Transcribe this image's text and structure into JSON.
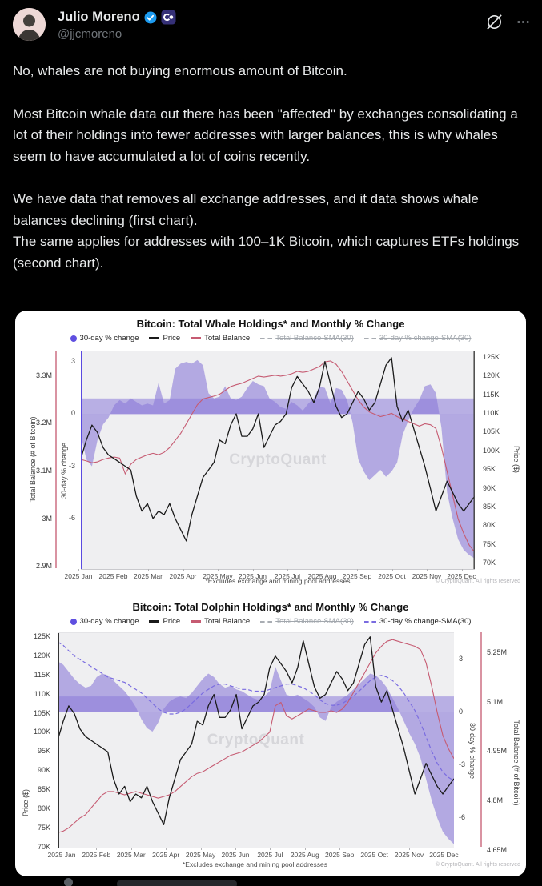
{
  "tweet": {
    "author": {
      "name": "Julio Moreno",
      "handle": "@jjcmoreno",
      "verified": true
    },
    "paragraphs": [
      "No, whales are not buying enormous amount of Bitcoin.",
      "Most Bitcoin whale data out there has been \"affected\" by exchanges consolidating a lot of their holdings into fewer addresses with larger balances, this is why whales seem to have accumulated a lot of coins recently.",
      "We have data that removes all exchange addresses, and it data shows whale balances declining (first chart).\nThe same applies for addresses with 100–1K Bitcoin, which captures ETFs holdings (second chart)."
    ],
    "icons": {
      "grok": "grok-slash-icon",
      "more": "⋯"
    },
    "colors": {
      "text": "#e7e9ea",
      "muted": "#71767b",
      "verified_blue": "#1d9bf0",
      "badge_bg": "#353077"
    }
  },
  "chart_data": [
    {
      "type": "line+area",
      "title": "Bitcoin: Total Whale Holdings* and Monthly % Change",
      "watermark": "CryptoQuant",
      "footnote": "*Excludes exchange and mining pool addresses",
      "copyright": "© CryptoQuant. All rights reserved",
      "legend": [
        {
          "label": "30-day % change",
          "marker": "dot",
          "color": "#5f4fe0",
          "active": true
        },
        {
          "label": "Price",
          "marker": "line",
          "color": "#1a1a1a",
          "active": true
        },
        {
          "label": "Total Balance",
          "marker": "line",
          "color": "#c65b72",
          "active": true
        },
        {
          "label": "Total Balance-SMA(30)",
          "marker": "dash",
          "color": "#a9adb3",
          "active": false
        },
        {
          "label": "30-day % change-SMA(30)",
          "marker": "dash",
          "color": "#a9adb3",
          "active": false
        }
      ],
      "months": [
        "2025 Jan",
        "2025 Feb",
        "2025 Mar",
        "2025 Apr",
        "2025 May",
        "2025 Jun",
        "2025 Jul",
        "2025 Aug",
        "2025 Sep",
        "2025 Oct",
        "2025 Nov",
        "2025 Dec"
      ],
      "zero_band": 0.9,
      "colors": {
        "area": "#8a7ad8",
        "price": "#1a1a1a",
        "balance": "#c65b72",
        "sma": "#7a6ce0",
        "plot_bg": "#efeff1"
      },
      "axes": {
        "balance": {
          "title": "Total Balance (# of Bitcoin)",
          "tick_labels": [
            "3.3M",
            "3.2M",
            "3.1M",
            "3M",
            "2.9M"
          ],
          "tick_values": [
            3.3,
            3.2,
            3.1,
            3.0,
            2.9
          ],
          "domain": [
            3.352,
            2.895
          ]
        },
        "pct": {
          "title": "30-day % change",
          "tick_labels": [
            "3",
            "0",
            "-3",
            "-6"
          ],
          "tick_values": [
            3,
            0,
            -3,
            -6
          ],
          "domain": [
            3.6,
            -8.9
          ]
        },
        "price": {
          "title": "Price ($)",
          "tick_labels": [
            "125K",
            "120K",
            "115K",
            "110K",
            "105K",
            "100K",
            "95K",
            "90K",
            "85K",
            "80K",
            "75K",
            "70K"
          ],
          "tick_values": [
            125,
            120,
            115,
            110,
            105,
            100,
            95,
            90,
            85,
            80,
            75,
            70
          ],
          "domain": [
            126.7,
            68.5
          ]
        }
      },
      "series": {
        "pct_change": {
          "name": "30-day % change",
          "axis": "pct",
          "values": [
            -1.2,
            -2.6,
            -3.0,
            -1.5,
            -0.6,
            -0.2,
            0.5,
            0.8,
            0.6,
            0.9,
            0.7,
            0.5,
            0.6,
            0.5,
            1.8,
            0.6,
            0.8,
            2.6,
            2.9,
            3.0,
            2.9,
            3.1,
            2.8,
            1.2,
            0.9,
            1.0,
            1.6,
            0.9,
            0.8,
            1.0,
            1.5,
            1.9,
            1.7,
            1.6,
            0.9,
            0.7,
            0.4,
            0.3,
            0.7,
            0.5,
            0.2,
            0.6,
            0.9,
            1.6,
            1.5,
            0.6,
            1.5,
            1.4,
            0.8,
            -0.5,
            -2.6,
            -3.3,
            -3.8,
            -3.5,
            -3.2,
            -3.6,
            -3.3,
            -2.8,
            -1.2,
            -0.4,
            0.3,
            0.8,
            1.6,
            1.7,
            1.2,
            -0.8,
            -4.5,
            -6.0,
            -7.2,
            -7.8,
            -8.1,
            -8.3
          ]
        },
        "price": {
          "name": "Price",
          "axis": "price",
          "values": [
            98,
            103,
            107,
            105,
            101,
            99,
            98,
            97,
            96,
            95,
            88,
            84,
            86,
            82,
            84,
            83,
            86,
            82,
            79,
            76,
            83,
            88,
            93,
            95,
            97,
            103,
            102,
            107,
            110,
            104,
            104,
            106,
            110,
            101,
            104,
            107,
            108,
            110,
            117,
            120,
            118,
            116,
            113,
            117,
            124,
            118,
            112,
            109,
            110,
            113,
            116,
            114,
            111,
            113,
            118,
            123,
            125,
            112,
            108,
            111,
            106,
            101,
            96,
            90,
            84,
            88,
            92,
            89,
            86,
            84,
            86,
            88
          ]
        },
        "balance": {
          "name": "Total Balance",
          "axis": "balance",
          "values": [
            3.125,
            3.122,
            3.118,
            3.12,
            3.125,
            3.128,
            3.13,
            3.128,
            3.095,
            3.115,
            3.125,
            3.13,
            3.135,
            3.138,
            3.135,
            3.14,
            3.15,
            3.165,
            3.18,
            3.2,
            3.22,
            3.24,
            3.252,
            3.255,
            3.258,
            3.262,
            3.27,
            3.278,
            3.282,
            3.285,
            3.29,
            3.295,
            3.3,
            3.298,
            3.3,
            3.302,
            3.3,
            3.302,
            3.305,
            3.31,
            3.308,
            3.31,
            3.315,
            3.32,
            3.33,
            3.332,
            3.325,
            3.31,
            3.29,
            3.27,
            3.25,
            3.235,
            3.225,
            3.22,
            3.215,
            3.218,
            3.222,
            3.215,
            3.21,
            3.205,
            3.2,
            3.195,
            3.2,
            3.198,
            3.19,
            3.15,
            3.1,
            3.05,
            3.0,
            2.97,
            2.945,
            2.93
          ]
        },
        "sma": null
      }
    },
    {
      "type": "line+area",
      "title": "Bitcoin: Total Dolphin Holdings* and Monthly % Change",
      "watermark": "CryptoQuant",
      "footnote": "*Excludes exchange and mining pool addresses",
      "copyright": "© CryptoQuant. All rights reserved",
      "legend": [
        {
          "label": "30-day % change",
          "marker": "dot",
          "color": "#5f4fe0",
          "active": true
        },
        {
          "label": "Price",
          "marker": "line",
          "color": "#1a1a1a",
          "active": true
        },
        {
          "label": "Total Balance",
          "marker": "line",
          "color": "#c65b72",
          "active": true
        },
        {
          "label": "Total Balance-SMA(30)",
          "marker": "dash",
          "color": "#a9adb3",
          "active": false
        },
        {
          "label": "30-day % change-SMA(30)",
          "marker": "dash",
          "color": "#7a6ce0",
          "active": true
        }
      ],
      "months": [
        "2025 Jan",
        "2025 Feb",
        "2025 Mar",
        "2025 Apr",
        "2025 May",
        "2025 Jun",
        "2025 Jul",
        "2025 Aug",
        "2025 Sep",
        "2025 Oct",
        "2025 Nov",
        "2025 Dec"
      ],
      "zero_band": 0.9,
      "colors": {
        "area": "#8a7ad8",
        "price": "#1a1a1a",
        "balance": "#c65b72",
        "sma": "#7a6ce0",
        "plot_bg": "#efeff1"
      },
      "axes": {
        "price": {
          "title": "Price ($)",
          "tick_labels": [
            "125K",
            "120K",
            "115K",
            "110K",
            "105K",
            "100K",
            "95K",
            "90K",
            "85K",
            "80K",
            "75K",
            "70K"
          ],
          "tick_values": [
            125,
            120,
            115,
            110,
            105,
            100,
            95,
            90,
            85,
            80,
            75,
            70
          ],
          "domain": [
            126.0,
            70.0
          ]
        },
        "pct": {
          "title": "30-day % change",
          "tick_labels": [
            "3",
            "0",
            "-3",
            "-6"
          ],
          "tick_values": [
            3,
            0,
            -3,
            -6
          ],
          "domain": [
            4.5,
            -7.7
          ]
        },
        "balance": {
          "title": "Total Balance (# of Bitcoin)",
          "tick_labels": [
            "5.25M",
            "5.1M",
            "4.95M",
            "4.8M",
            "4.65M"
          ],
          "tick_values": [
            5.25,
            5.1,
            4.95,
            4.8,
            4.65
          ],
          "domain": [
            5.31,
            4.66
          ]
        }
      },
      "series": {
        "pct_change": {
          "name": "30-day % change",
          "axis": "pct",
          "values": [
            2.9,
            2.7,
            2.3,
            1.9,
            1.6,
            1.4,
            1.5,
            2.0,
            2.2,
            2.1,
            1.8,
            1.5,
            1.2,
            0.8,
            0.3,
            -0.4,
            -0.9,
            -1.1,
            -0.6,
            0.2,
            0.6,
            0.8,
            0.9,
            0.8,
            1.1,
            1.5,
            1.9,
            2.2,
            2.0,
            1.6,
            1.4,
            1.5,
            1.3,
            1.2,
            1.0,
            0.8,
            0.7,
            0.9,
            1.2,
            2.6,
            1.8,
            1.0,
            0.9,
            1.0,
            0.8,
            0.6,
            0.3,
            -0.3,
            -0.5,
            0.3,
            0.6,
            0.8,
            1.0,
            1.3,
            1.6,
            1.9,
            2.2,
            2.1,
            1.8,
            1.4,
            0.8,
            0.2,
            -0.5,
            -1.2,
            -1.8,
            -2.6,
            -3.8,
            -5.0,
            -6.0,
            -6.8,
            -7.2,
            -7.5
          ]
        },
        "price": {
          "name": "Price",
          "axis": "price",
          "values": [
            98,
            103,
            107,
            105,
            101,
            99,
            98,
            97,
            96,
            95,
            88,
            84,
            86,
            82,
            84,
            83,
            86,
            82,
            79,
            76,
            83,
            88,
            93,
            95,
            97,
            103,
            102,
            107,
            110,
            104,
            104,
            106,
            110,
            101,
            104,
            107,
            108,
            110,
            117,
            120,
            118,
            116,
            113,
            117,
            124,
            118,
            112,
            109,
            110,
            113,
            116,
            114,
            111,
            113,
            118,
            123,
            125,
            112,
            108,
            111,
            106,
            101,
            96,
            90,
            84,
            88,
            92,
            89,
            86,
            84,
            86,
            88
          ]
        },
        "balance": {
          "name": "Total Balance",
          "axis": "balance",
          "values": [
            4.705,
            4.71,
            4.72,
            4.735,
            4.75,
            4.76,
            4.78,
            4.8,
            4.82,
            4.83,
            4.83,
            4.825,
            4.82,
            4.825,
            4.83,
            4.825,
            4.82,
            4.815,
            4.81,
            4.815,
            4.82,
            4.83,
            4.845,
            4.86,
            4.875,
            4.885,
            4.89,
            4.9,
            4.91,
            4.92,
            4.93,
            4.94,
            4.945,
            4.95,
            4.96,
            4.97,
            4.98,
            4.995,
            5.01,
            5.09,
            5.1,
            5.06,
            5.05,
            5.06,
            5.07,
            5.08,
            5.075,
            5.07,
            5.07,
            5.075,
            5.07,
            5.08,
            5.1,
            5.13,
            5.16,
            5.19,
            5.22,
            5.25,
            5.27,
            5.285,
            5.29,
            5.285,
            5.28,
            5.275,
            5.27,
            5.26,
            5.22,
            5.15,
            5.07,
            5.0,
            4.96,
            4.93
          ]
        },
        "sma": {
          "name": "30-day % change-SMA(30)",
          "axis": "pct",
          "values": [
            4.0,
            3.8,
            3.5,
            3.2,
            3.0,
            2.8,
            2.6,
            2.4,
            2.2,
            2.0,
            1.9,
            1.8,
            1.7,
            1.5,
            1.3,
            1.1,
            0.8,
            0.5,
            0.2,
            0.0,
            -0.1,
            -0.1,
            0.0,
            0.2,
            0.5,
            0.8,
            1.1,
            1.3,
            1.5,
            1.6,
            1.6,
            1.5,
            1.4,
            1.3,
            1.3,
            1.2,
            1.2,
            1.2,
            1.3,
            1.4,
            1.5,
            1.6,
            1.6,
            1.5,
            1.4,
            1.2,
            1.0,
            0.7,
            0.5,
            0.4,
            0.4,
            0.5,
            0.7,
            0.9,
            1.2,
            1.5,
            1.8,
            2.0,
            2.1,
            2.0,
            1.8,
            1.5,
            1.1,
            0.6,
            0.1,
            -0.6,
            -1.4,
            -2.2,
            -2.9,
            -3.4,
            -3.7,
            -3.9
          ]
        }
      }
    }
  ]
}
